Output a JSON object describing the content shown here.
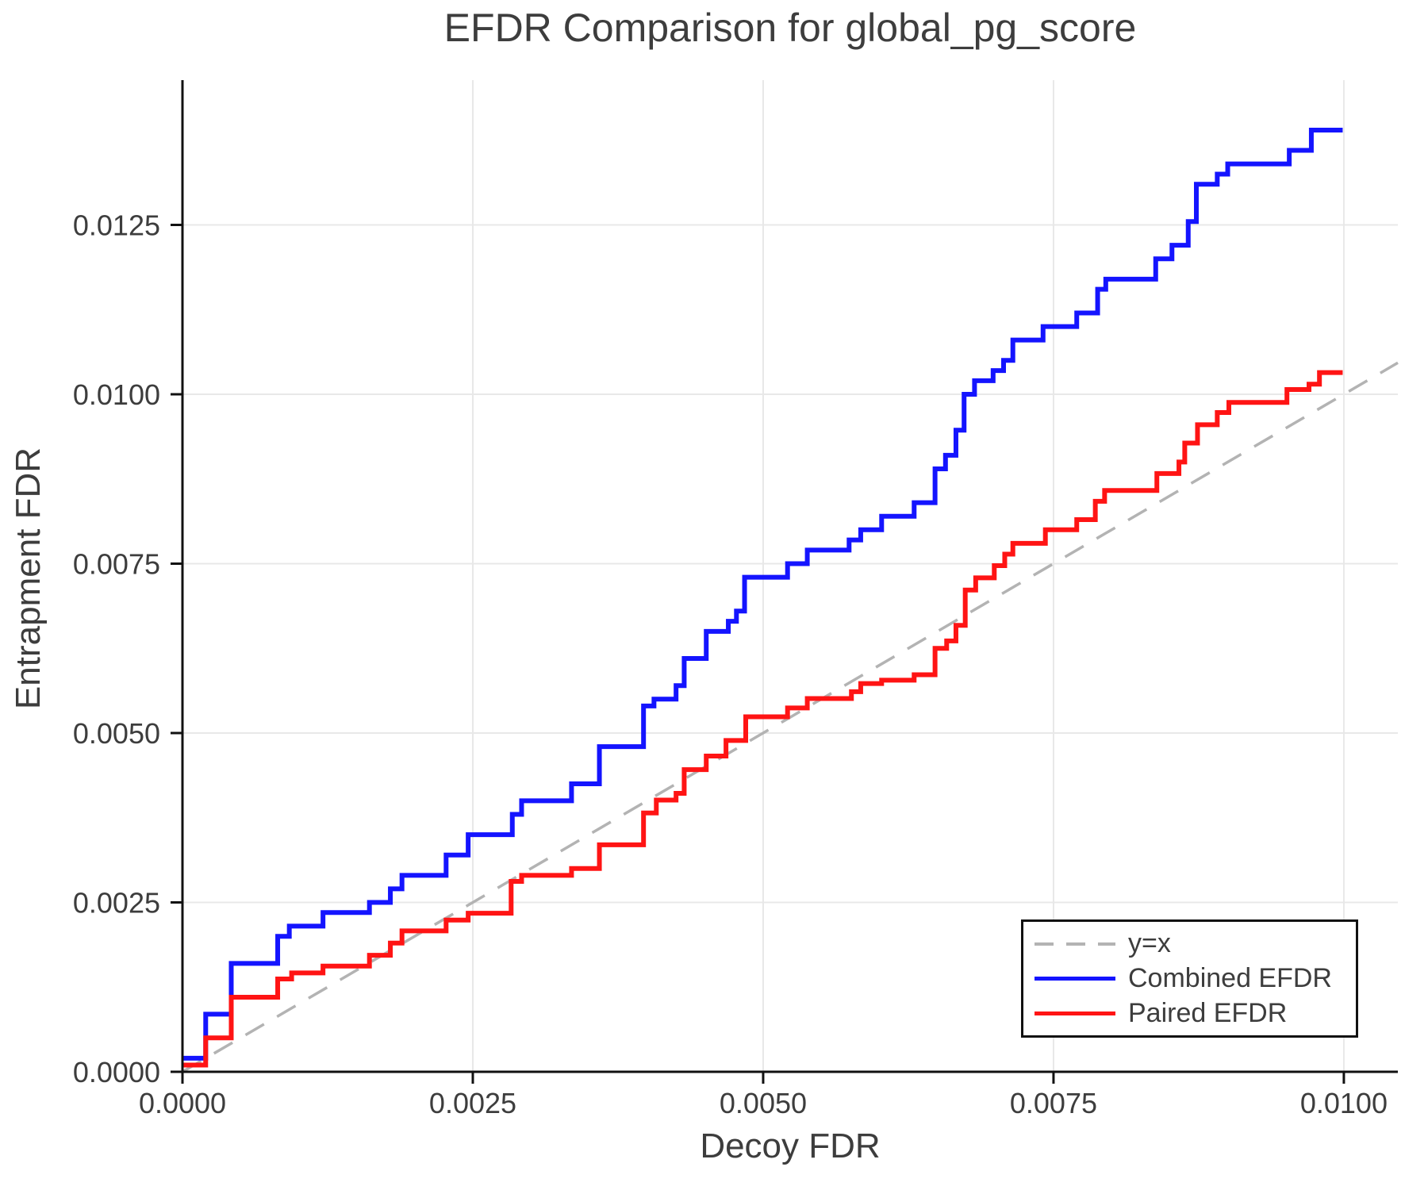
{
  "title": "EFDR Comparison for global_pg_score",
  "axes": {
    "xlabel": "Decoy FDR",
    "ylabel": "Entrapment FDR"
  },
  "colors": {
    "combined": "#1414ff",
    "paired": "#ff1414",
    "identity": "#b3b3b3",
    "grid": "#e8e8e8",
    "spine": "#111111",
    "text": "#3d3d3d"
  },
  "legend": {
    "entries": [
      {
        "label": "y=x",
        "color": "#b3b3b3",
        "style": "dashed"
      },
      {
        "label": "Combined EFDR",
        "color": "#1414ff",
        "style": "solid"
      },
      {
        "label": "Paired EFDR",
        "color": "#ff1414",
        "style": "solid"
      }
    ],
    "position": "lower right"
  },
  "chart_data": {
    "type": "line",
    "title": "EFDR Comparison for global_pg_score",
    "xlabel": "Decoy FDR",
    "ylabel": "Entrapment FDR",
    "grid": true,
    "xlim": [
      0,
      0.010465
    ],
    "ylim": [
      0,
      0.014637
    ],
    "xticks": {
      "values": [
        0.0,
        0.0025,
        0.005,
        0.0075,
        0.01
      ],
      "labels": [
        "0.0000",
        "0.0025",
        "0.0050",
        "0.0075",
        "0.0100"
      ]
    },
    "yticks": {
      "values": [
        0.0,
        0.0025,
        0.005,
        0.0075,
        0.01,
        0.0125
      ],
      "labels": [
        "0.0000",
        "0.0025",
        "0.0050",
        "0.0075",
        "0.0100",
        "0.0125"
      ]
    },
    "identity_line": {
      "name": "y=x",
      "style": "dashed",
      "color": "#b3b3b3",
      "points": [
        [
          0,
          0
        ],
        [
          0.010465,
          0.010465
        ]
      ]
    },
    "series": [
      {
        "name": "Combined EFDR",
        "color": "#1414ff",
        "style": "step",
        "steps": [
          [
            0.0,
            0.0002
          ],
          [
            0.0002,
            0.00085
          ],
          [
            0.00042,
            0.0016
          ],
          [
            0.00082,
            0.002
          ],
          [
            0.00092,
            0.00215
          ],
          [
            0.00121,
            0.00235
          ],
          [
            0.00161,
            0.0025
          ],
          [
            0.00179,
            0.0027
          ],
          [
            0.00189,
            0.0029
          ],
          [
            0.00227,
            0.0032
          ],
          [
            0.00246,
            0.0035
          ],
          [
            0.00284,
            0.0038
          ],
          [
            0.00292,
            0.004
          ],
          [
            0.00335,
            0.00425
          ],
          [
            0.00359,
            0.0048
          ],
          [
            0.00397,
            0.0054
          ],
          [
            0.00406,
            0.0055
          ],
          [
            0.00425,
            0.0057
          ],
          [
            0.00432,
            0.0061
          ],
          [
            0.00451,
            0.0065
          ],
          [
            0.0047,
            0.00665
          ],
          [
            0.00477,
            0.0068
          ],
          [
            0.00484,
            0.0073
          ],
          [
            0.00521,
            0.0075
          ],
          [
            0.00538,
            0.0077
          ],
          [
            0.00574,
            0.00785
          ],
          [
            0.00584,
            0.008
          ],
          [
            0.00602,
            0.0082
          ],
          [
            0.0063,
            0.0084
          ],
          [
            0.00648,
            0.0089
          ],
          [
            0.00657,
            0.0091
          ],
          [
            0.00666,
            0.00947
          ],
          [
            0.00673,
            0.01
          ],
          [
            0.00682,
            0.0102
          ],
          [
            0.00698,
            0.01035
          ],
          [
            0.00707,
            0.0105
          ],
          [
            0.00715,
            0.0108
          ],
          [
            0.00741,
            0.011
          ],
          [
            0.0077,
            0.0112
          ],
          [
            0.00788,
            0.01155
          ],
          [
            0.00795,
            0.0117
          ],
          [
            0.00838,
            0.012
          ],
          [
            0.00852,
            0.0122
          ],
          [
            0.00866,
            0.01255
          ],
          [
            0.00873,
            0.0131
          ],
          [
            0.00891,
            0.01325
          ],
          [
            0.009,
            0.0134
          ],
          [
            0.00953,
            0.0136
          ],
          [
            0.00972,
            0.0139
          ],
          [
            0.00999,
            0.0139
          ]
        ]
      },
      {
        "name": "Paired EFDR",
        "color": "#ff1414",
        "style": "step",
        "steps": [
          [
            0.0,
            0.0001
          ],
          [
            0.0002,
            0.0005
          ],
          [
            0.00042,
            0.0011
          ],
          [
            0.00082,
            0.00137
          ],
          [
            0.00094,
            0.00146
          ],
          [
            0.00121,
            0.00156
          ],
          [
            0.00161,
            0.00172
          ],
          [
            0.00179,
            0.0019
          ],
          [
            0.00189,
            0.00208
          ],
          [
            0.00227,
            0.00224
          ],
          [
            0.00246,
            0.00234
          ],
          [
            0.00283,
            0.00281
          ],
          [
            0.00292,
            0.0029
          ],
          [
            0.00335,
            0.003
          ],
          [
            0.00359,
            0.00335
          ],
          [
            0.00397,
            0.00382
          ],
          [
            0.00408,
            0.00401
          ],
          [
            0.00425,
            0.00411
          ],
          [
            0.00432,
            0.00446
          ],
          [
            0.00451,
            0.00466
          ],
          [
            0.00468,
            0.00489
          ],
          [
            0.00485,
            0.00524
          ],
          [
            0.00521,
            0.00537
          ],
          [
            0.00538,
            0.00551
          ],
          [
            0.00576,
            0.00561
          ],
          [
            0.00584,
            0.00573
          ],
          [
            0.00602,
            0.00578
          ],
          [
            0.0063,
            0.00586
          ],
          [
            0.00648,
            0.00625
          ],
          [
            0.00658,
            0.00636
          ],
          [
            0.00666,
            0.00659
          ],
          [
            0.00674,
            0.00711
          ],
          [
            0.00683,
            0.00729
          ],
          [
            0.00699,
            0.00747
          ],
          [
            0.00708,
            0.00764
          ],
          [
            0.00715,
            0.0078
          ],
          [
            0.00743,
            0.008
          ],
          [
            0.0077,
            0.00815
          ],
          [
            0.00786,
            0.00842
          ],
          [
            0.00794,
            0.00858
          ],
          [
            0.00839,
            0.00883
          ],
          [
            0.00858,
            0.009
          ],
          [
            0.00863,
            0.00928
          ],
          [
            0.00874,
            0.00955
          ],
          [
            0.00891,
            0.00973
          ],
          [
            0.00901,
            0.00988
          ],
          [
            0.00951,
            0.01007
          ],
          [
            0.0097,
            0.01015
          ],
          [
            0.00979,
            0.01032
          ],
          [
            0.00999,
            0.01032
          ]
        ]
      }
    ],
    "legend_position": "lower right"
  }
}
